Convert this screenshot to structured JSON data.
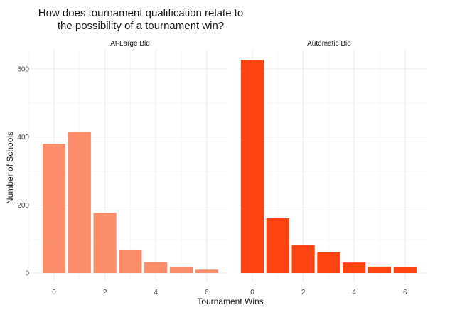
{
  "chart_data": {
    "type": "bar",
    "title_lines": [
      "How does tournament qualification relate to",
      "the possibility of a tournament win?"
    ],
    "xlabel": "Tournament Wins",
    "ylabel": "Number of Schools",
    "x": [
      0,
      1,
      2,
      3,
      4,
      5,
      6
    ],
    "x_ticks": [
      0,
      2,
      4,
      6
    ],
    "y_ticks": [
      0,
      200,
      400,
      600
    ],
    "ylim": [
      0,
      650
    ],
    "grid": true,
    "facets": [
      {
        "name": "At-Large Bid",
        "color": "#fc8d6a",
        "values": [
          380,
          415,
          177,
          67,
          33,
          18,
          10
        ]
      },
      {
        "name": "Automatic Bid",
        "color": "#ff4411",
        "values": [
          626,
          161,
          83,
          61,
          31,
          19,
          17
        ]
      }
    ]
  }
}
